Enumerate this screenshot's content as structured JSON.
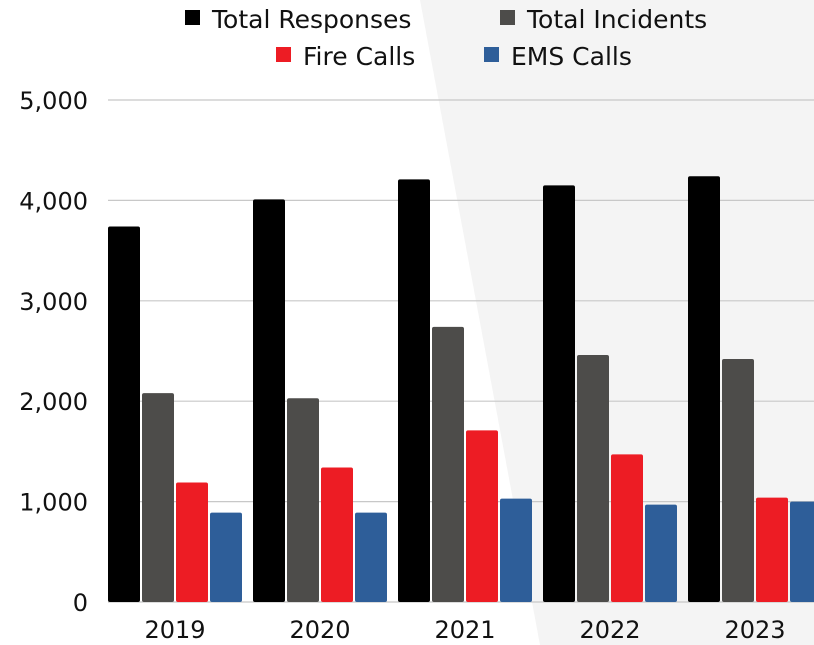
{
  "chart_data": {
    "type": "bar",
    "categories": [
      "2019",
      "2020",
      "2021",
      "2022",
      "2023"
    ],
    "series": [
      {
        "name": "Total Responses",
        "color": "#000000",
        "values": [
          3740,
          4010,
          4210,
          4150,
          4240
        ]
      },
      {
        "name": "Total Incidents",
        "color": "#4d4c4a",
        "values": [
          2080,
          2030,
          2740,
          2460,
          2420
        ]
      },
      {
        "name": "Fire Calls",
        "color": "#ed1c24",
        "values": [
          1190,
          1340,
          1710,
          1470,
          1040
        ]
      },
      {
        "name": "EMS Calls",
        "color": "#2e5e99",
        "values": [
          890,
          890,
          1030,
          970,
          1000
        ]
      }
    ],
    "yticks": [
      "0",
      "1,000",
      "2,000",
      "3,000",
      "4,000",
      "5,000"
    ],
    "ylim": [
      0,
      5000
    ],
    "grid": true,
    "legend_position": "top"
  }
}
